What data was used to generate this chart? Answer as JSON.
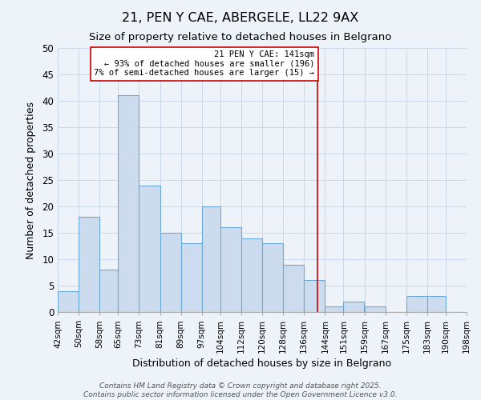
{
  "title": "21, PEN Y CAE, ABERGELE, LL22 9AX",
  "subtitle": "Size of property relative to detached houses in Belgrano",
  "xlabel": "Distribution of detached houses by size in Belgrano",
  "ylabel": "Number of detached properties",
  "bar_left_edges": [
    42,
    50,
    58,
    65,
    73,
    81,
    89,
    97,
    104,
    112,
    120,
    128,
    136,
    144,
    151,
    159,
    167,
    175,
    183,
    190
  ],
  "bar_widths": [
    8,
    8,
    7,
    8,
    8,
    8,
    8,
    7,
    8,
    8,
    8,
    8,
    8,
    7,
    8,
    8,
    8,
    8,
    7,
    8
  ],
  "bar_heights": [
    4,
    18,
    8,
    41,
    24,
    15,
    13,
    20,
    16,
    14,
    13,
    9,
    6,
    1,
    2,
    1,
    0,
    3,
    3,
    0
  ],
  "bar_color": "#ccdcee",
  "bar_edgecolor": "#6aaad4",
  "x_tick_labels": [
    "42sqm",
    "50sqm",
    "58sqm",
    "65sqm",
    "73sqm",
    "81sqm",
    "89sqm",
    "97sqm",
    "104sqm",
    "112sqm",
    "120sqm",
    "128sqm",
    "136sqm",
    "144sqm",
    "151sqm",
    "159sqm",
    "167sqm",
    "175sqm",
    "183sqm",
    "190sqm",
    "198sqm"
  ],
  "x_tick_positions": [
    42,
    50,
    58,
    65,
    73,
    81,
    89,
    97,
    104,
    112,
    120,
    128,
    136,
    144,
    151,
    159,
    167,
    175,
    183,
    190,
    198
  ],
  "xlim": [
    42,
    198
  ],
  "ylim": [
    0,
    50
  ],
  "yticks": [
    0,
    5,
    10,
    15,
    20,
    25,
    30,
    35,
    40,
    45,
    50
  ],
  "vline_x": 141,
  "vline_color": "#cc0000",
  "annotation_title": "21 PEN Y CAE: 141sqm",
  "annotation_line1": "← 93% of detached houses are smaller (196)",
  "annotation_line2": "7% of semi-detached houses are larger (15) →",
  "annotation_box_color": "#ffffff",
  "annotation_box_edgecolor": "#cc0000",
  "grid_color": "#c8d8ea",
  "background_color": "#eef2f9",
  "footer_line1": "Contains HM Land Registry data © Crown copyright and database right 2025.",
  "footer_line2": "Contains public sector information licensed under the Open Government Licence v3.0.",
  "title_fontsize": 11.5,
  "subtitle_fontsize": 9.5,
  "xlabel_fontsize": 9,
  "ylabel_fontsize": 9,
  "tick_fontsize": 7.5,
  "ytick_fontsize": 8.5,
  "footer_fontsize": 6.5,
  "annotation_fontsize": 7.5
}
